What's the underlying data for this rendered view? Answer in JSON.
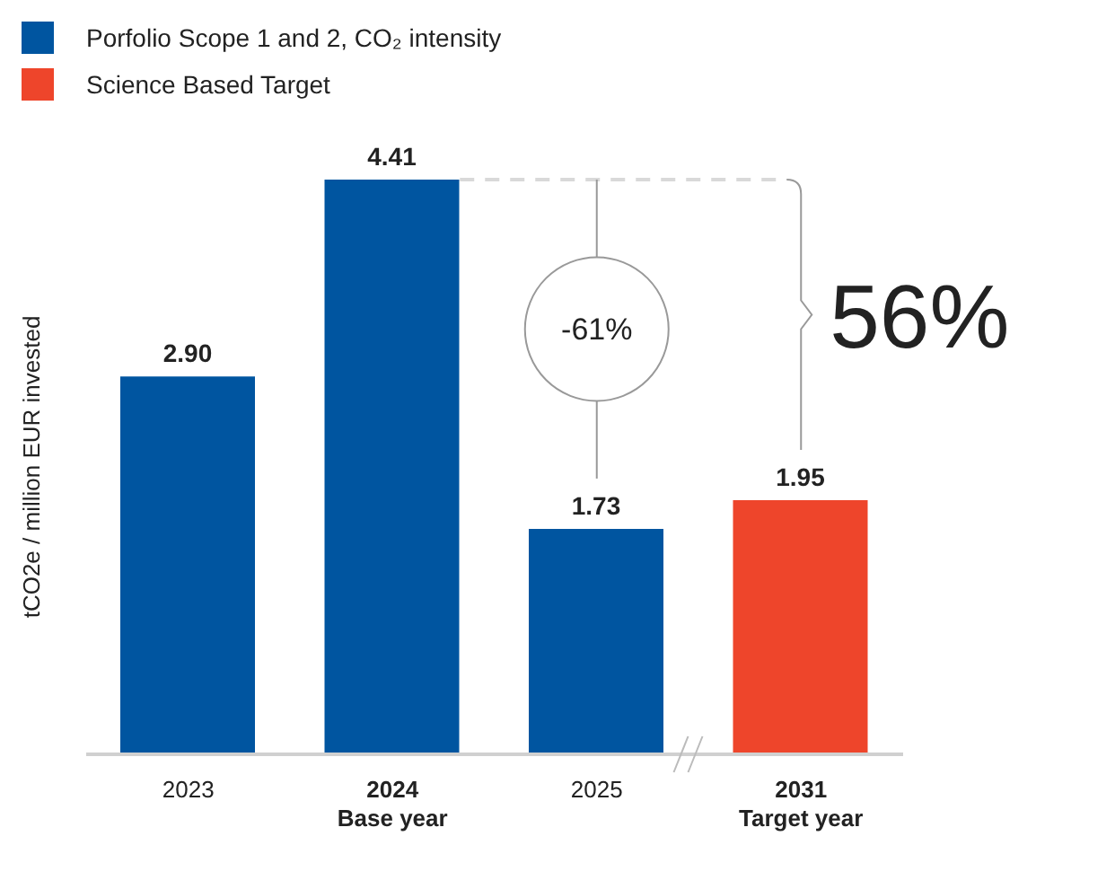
{
  "chart_data": {
    "type": "bar",
    "ylabel": "tCO2e / million EUR invested",
    "categories": [
      "2023",
      "2024\nBase year",
      "2025",
      "2031\nTarget year"
    ],
    "series": [
      {
        "name": "Porfolio Scope 1 and 2, CO₂ intensity",
        "color": "#0055a0",
        "values": [
          2.9,
          4.41,
          1.73,
          null
        ],
        "value_labels": [
          "2.90",
          "4.41",
          "1.73",
          null
        ]
      },
      {
        "name": "Science Based Target",
        "color": "#ee452b",
        "values": [
          null,
          null,
          null,
          1.95
        ],
        "value_labels": [
          null,
          null,
          null,
          "1.95"
        ]
      }
    ],
    "stacked": true,
    "legend": "top left",
    "ref_lines": [
      {
        "axis": "y",
        "value": 4.41,
        "color": "#d9d9d9",
        "line_style": "dashed"
      }
    ],
    "annotations": [
      "-61%",
      "56%"
    ]
  }
}
